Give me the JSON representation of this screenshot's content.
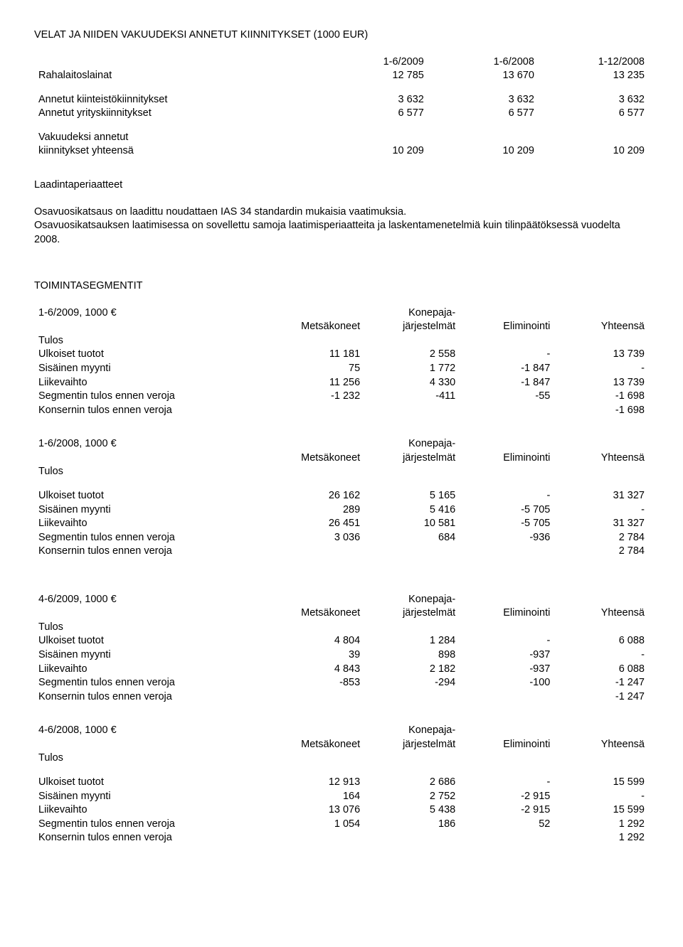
{
  "colors": {
    "text": "#000000",
    "bg": "#ffffff"
  },
  "typography": {
    "font_family": "Arial",
    "body_pt": 11
  },
  "velat": {
    "title": "VELAT JA NIIDEN VAKUUDEKSI ANNETUT KIINNITYKSET (1000 EUR)",
    "headers": [
      "1-6/2009",
      "1-6/2008",
      "1-12/2008"
    ],
    "rows": [
      {
        "label": "Rahalaitoslainat",
        "v": [
          "12 785",
          "13 670",
          "13 235"
        ]
      }
    ],
    "rows2": [
      {
        "label": "Annetut kiinteistökiinnitykset",
        "v": [
          "3 632",
          "3 632",
          "3 632"
        ]
      },
      {
        "label": "Annetut yrityskiinnitykset",
        "v": [
          "6 577",
          "6 577",
          "6 577"
        ]
      }
    ],
    "rows3": [
      {
        "label0": "Vakuudeksi annetut",
        "label": "kiinnitykset yhteensä",
        "v": [
          "10 209",
          "10 209",
          "10 209"
        ]
      }
    ]
  },
  "laadinta": {
    "title": "Laadintaperiaatteet",
    "p1": "Osavuosikatsaus on laadittu noudattaen IAS 34 standardin mukaisia vaatimuksia.",
    "p2": "Osavuosikatsauksen laatimisessa on sovellettu samoja laatimisperiaatteita ja laskentamenetelmiä kuin tilinpäätöksessä vuodelta 2008."
  },
  "segmentit": {
    "title": "TOIMINTASEGMENTIT",
    "col_headers": {
      "c1": "Metsäkoneet",
      "c2a": "Konepaja-",
      "c2b": "järjestelmät",
      "c3": "Eliminointi",
      "c4": "Yhteensä"
    },
    "blocks": [
      {
        "period": "1-6/2009, 1000 €",
        "tulos": "Tulos",
        "rows": [
          {
            "label": "Ulkoiset tuotot",
            "v": [
              "11 181",
              "2 558",
              "-",
              "13 739"
            ]
          },
          {
            "label": "Sisäinen myynti",
            "v": [
              "75",
              "1 772",
              "-1 847",
              "-"
            ]
          },
          {
            "label": "Liikevaihto",
            "v": [
              "11 256",
              "4 330",
              "-1 847",
              "13 739"
            ]
          },
          {
            "label": "Segmentin tulos ennen veroja",
            "v": [
              "-1 232",
              "-411",
              "-55",
              "-1 698"
            ]
          },
          {
            "label": "Konsernin tulos ennen veroja",
            "v": [
              "",
              "",
              "",
              "-1 698"
            ]
          }
        ]
      },
      {
        "period": "1-6/2008, 1000 €",
        "tulos": "Tulos",
        "rows": [
          {
            "label": "Ulkoiset tuotot",
            "v": [
              "26 162",
              "5 165",
              "-",
              "31 327"
            ]
          },
          {
            "label": "Sisäinen myynti",
            "v": [
              "289",
              "5 416",
              "-5 705",
              "-"
            ]
          },
          {
            "label": "Liikevaihto",
            "v": [
              "26 451",
              "10 581",
              "-5 705",
              "31 327"
            ]
          },
          {
            "label": "Segmentin tulos ennen veroja",
            "v": [
              "3 036",
              "684",
              "-936",
              "2 784"
            ]
          },
          {
            "label": "Konsernin tulos ennen veroja",
            "v": [
              "",
              "",
              "",
              "2 784"
            ]
          }
        ],
        "gap_before_rows": true
      },
      {
        "period": "4-6/2009, 1000 €",
        "tulos": "Tulos",
        "large_gap_before": true,
        "rows": [
          {
            "label": "Ulkoiset tuotot",
            "v": [
              "4 804",
              "1 284",
              "-",
              "6 088"
            ]
          },
          {
            "label": "Sisäinen myynti",
            "v": [
              "39",
              "898",
              "-937",
              "-"
            ]
          },
          {
            "label": "Liikevaihto",
            "v": [
              "4 843",
              "2 182",
              "-937",
              "6 088"
            ]
          },
          {
            "label": "Segmentin tulos ennen veroja",
            "v": [
              "-853",
              "-294",
              "-100",
              "-1 247"
            ]
          },
          {
            "label": "Konsernin tulos ennen veroja",
            "v": [
              "",
              "",
              "",
              "-1 247"
            ]
          }
        ]
      },
      {
        "period": "4-6/2008, 1000 €",
        "tulos": "Tulos",
        "rows": [
          {
            "label": "Ulkoiset tuotot",
            "v": [
              "12 913",
              "2 686",
              "-",
              "15 599"
            ]
          },
          {
            "label": "Sisäinen myynti",
            "v": [
              "164",
              "2 752",
              "-2 915",
              "-"
            ]
          },
          {
            "label": "Liikevaihto",
            "v": [
              "13 076",
              "5 438",
              "-2 915",
              "15 599"
            ]
          },
          {
            "label": "Segmentin tulos ennen veroja",
            "v": [
              "1 054",
              "186",
              "52",
              "1 292"
            ]
          },
          {
            "label": "Konsernin tulos ennen veroja",
            "v": [
              "",
              "",
              "",
              "1 292"
            ]
          }
        ],
        "gap_before_rows": true
      }
    ]
  }
}
